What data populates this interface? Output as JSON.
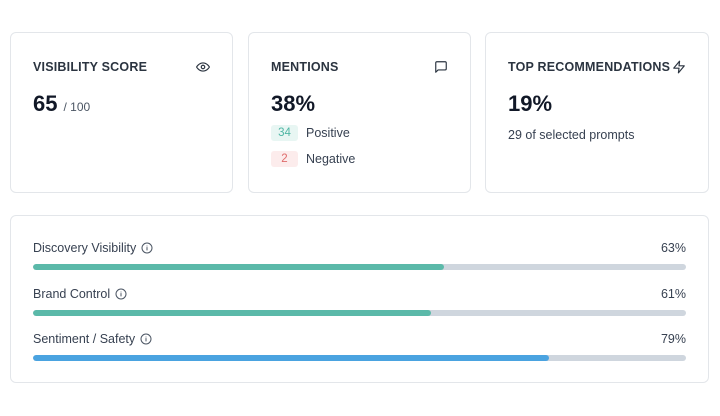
{
  "cards": {
    "visibility": {
      "title": "VISIBILITY SCORE",
      "icon": "eye-icon",
      "value": "65",
      "suffix": "/ 100"
    },
    "mentions": {
      "title": "MENTIONS",
      "icon": "message-square-icon",
      "value": "38%",
      "positive_count": "34",
      "positive_label": "Positive",
      "negative_count": "2",
      "negative_label": "Negative"
    },
    "recommendations": {
      "title": "TOP RECOMMENDATIONS",
      "icon": "lightning-icon",
      "value": "19%",
      "subtext": "29 of selected prompts"
    }
  },
  "metrics": [
    {
      "label": "Discovery Visibility",
      "value_text": "63%",
      "percent": 63,
      "color": "#5bb9a9",
      "icon": "info-icon"
    },
    {
      "label": "Brand Control",
      "value_text": "61%",
      "percent": 61,
      "color": "#5bb9a9",
      "icon": "info-icon"
    },
    {
      "label": "Sentiment / Safety",
      "value_text": "79%",
      "percent": 79,
      "color": "#4aa3e0",
      "icon": "info-icon"
    }
  ]
}
